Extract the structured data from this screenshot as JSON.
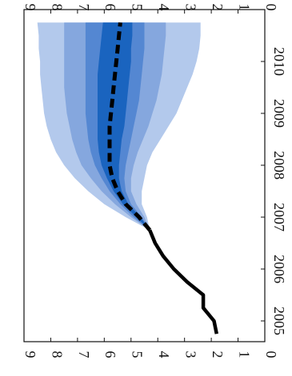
{
  "chart_data": {
    "type": "area",
    "orientation": "rotated 90° clockwise (x axis runs top to bottom, y increases to the left)",
    "title": "",
    "xlabel": "",
    "ylabel": "",
    "xlim": [
      2004.6,
      2011.0
    ],
    "ylim": [
      0,
      9
    ],
    "x_tick_labels": [
      "2005",
      "2006",
      "2007",
      "2008",
      "2009",
      "2010"
    ],
    "y_tick_labels": [
      "0",
      "1",
      "2",
      "3",
      "4",
      "5",
      "6",
      "7",
      "8",
      "9"
    ],
    "grid": false,
    "colors": {
      "band_outer": "#b3c9ec",
      "band_middle": "#85a7de",
      "band_inner": "#5487d2",
      "band_central": "#1a64bf",
      "history_line": "#000000",
      "projection_line": "#000000"
    },
    "history": {
      "x": [
        2004.75,
        2005.0,
        2005.25,
        2005.5,
        2005.75,
        2006.0,
        2006.25,
        2006.5,
        2006.75
      ],
      "y": [
        1.8,
        1.9,
        2.3,
        2.3,
        2.9,
        3.4,
        3.8,
        4.1,
        4.3
      ]
    },
    "projection": {
      "x": [
        2006.75,
        2007.0,
        2007.25,
        2007.5,
        2007.75,
        2008.0,
        2008.25,
        2008.5,
        2008.75,
        2009.0,
        2009.25,
        2009.5,
        2009.75,
        2010.0,
        2010.25,
        2010.5,
        2010.75
      ],
      "y": [
        4.3,
        4.7,
        5.2,
        5.5,
        5.7,
        5.8,
        5.8,
        5.8,
        5.8,
        5.75,
        5.7,
        5.65,
        5.6,
        5.55,
        5.5,
        5.45,
        5.4
      ]
    },
    "fan_bands": {
      "x": [
        2006.75,
        2007.0,
        2007.25,
        2007.5,
        2007.75,
        2008.0,
        2008.25,
        2008.5,
        2008.75,
        2009.0,
        2009.25,
        2009.5,
        2009.75,
        2010.0,
        2010.25,
        2010.5,
        2010.75
      ],
      "outer_lower": [
        4.3,
        4.4,
        4.6,
        4.6,
        4.5,
        4.4,
        4.2,
        3.9,
        3.6,
        3.3,
        3.1,
        2.9,
        2.7,
        2.55,
        2.45,
        2.4,
        2.4
      ],
      "outer_upper": [
        4.3,
        5.2,
        6.0,
        6.6,
        7.1,
        7.5,
        7.8,
        8.0,
        8.15,
        8.25,
        8.3,
        8.35,
        8.4,
        8.4,
        8.45,
        8.45,
        8.5
      ],
      "middle_lower": [
        4.3,
        4.5,
        4.8,
        5.0,
        5.0,
        4.9,
        4.75,
        4.55,
        4.35,
        4.2,
        4.05,
        3.95,
        3.85,
        3.8,
        3.75,
        3.7,
        3.7
      ],
      "middle_upper": [
        4.3,
        5.0,
        5.6,
        6.1,
        6.5,
        6.85,
        7.05,
        7.2,
        7.3,
        7.4,
        7.45,
        7.5,
        7.5,
        7.5,
        7.5,
        7.5,
        7.5
      ],
      "inner_lower": [
        4.3,
        4.6,
        5.0,
        5.2,
        5.25,
        5.2,
        5.1,
        5.0,
        4.9,
        4.8,
        4.7,
        4.65,
        4.6,
        4.55,
        4.5,
        4.5,
        4.5
      ],
      "inner_upper": [
        4.3,
        4.9,
        5.4,
        5.8,
        6.1,
        6.35,
        6.5,
        6.6,
        6.65,
        6.7,
        6.7,
        6.7,
        6.7,
        6.7,
        6.7,
        6.7,
        6.7
      ],
      "central_lower": [
        4.3,
        4.65,
        5.1,
        5.35,
        5.45,
        5.45,
        5.4,
        5.35,
        5.25,
        5.2,
        5.15,
        5.1,
        5.05,
        5.0,
        5.0,
        4.95,
        4.95
      ],
      "central_upper": [
        4.3,
        4.8,
        5.3,
        5.65,
        5.9,
        6.1,
        6.2,
        6.25,
        6.25,
        6.25,
        6.25,
        6.25,
        6.25,
        6.2,
        6.15,
        6.1,
        6.05
      ]
    }
  }
}
